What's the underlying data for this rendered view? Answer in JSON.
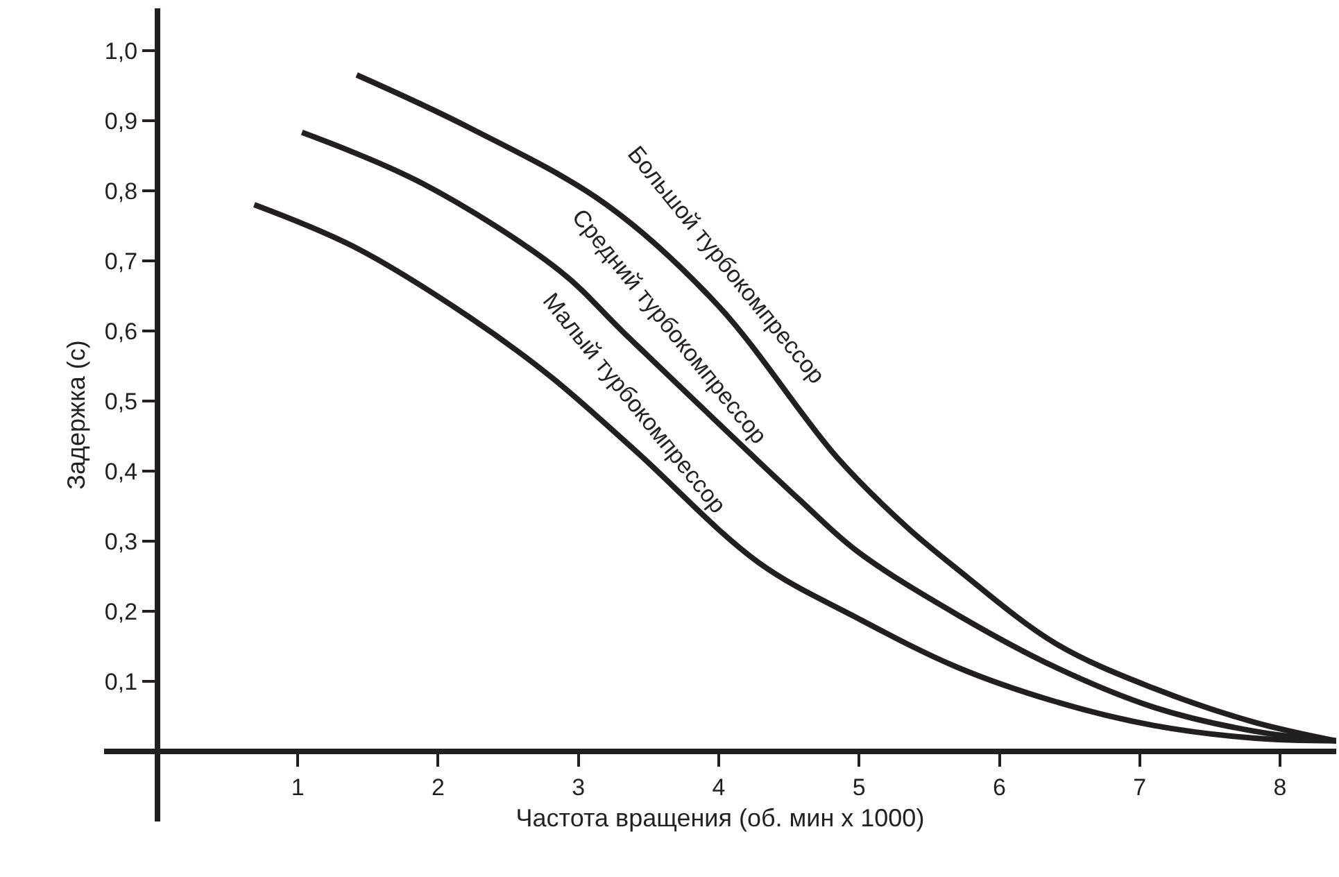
{
  "chart_data": {
    "type": "line",
    "xlabel": "Частота вращения (об. мин x 1000)",
    "ylabel": "Задержка (с)",
    "xlim": [
      -0.38,
      8.4
    ],
    "ylim": [
      -0.1,
      1.06
    ],
    "xticks": [
      1,
      2,
      3,
      4,
      5,
      6,
      7,
      8
    ],
    "yticks": [
      {
        "value": 0.1,
        "label": "0,1"
      },
      {
        "value": 0.2,
        "label": "0,2"
      },
      {
        "value": 0.3,
        "label": "0,3"
      },
      {
        "value": 0.4,
        "label": "0,4"
      },
      {
        "value": 0.5,
        "label": "0,5"
      },
      {
        "value": 0.6,
        "label": "0,6"
      },
      {
        "value": 0.7,
        "label": "0,7"
      },
      {
        "value": 0.8,
        "label": "0,8"
      },
      {
        "value": 0.9,
        "label": "0,9"
      },
      {
        "value": 1.0,
        "label": "1,0"
      }
    ],
    "legend": false,
    "marker": "none",
    "line_style": "solid",
    "series": [
      {
        "name": "Большой турбокомпрессор",
        "color": "#231f20",
        "x": [
          1.42,
          2.22,
          3.2,
          4.0,
          4.84,
          5.34,
          5.7,
          6.4,
          7.1,
          7.81,
          8.4
        ],
        "values": [
          0.965,
          0.89,
          0.78,
          0.635,
          0.42,
          0.32,
          0.26,
          0.154,
          0.09,
          0.042,
          0.015
        ]
      },
      {
        "name": "Средний турбокомпрессор",
        "color": "#231f20",
        "x": [
          1.03,
          1.89,
          2.87,
          3.33,
          4.57,
          4.99,
          5.7,
          6.4,
          7.1,
          7.81,
          8.4
        ],
        "values": [
          0.883,
          0.81,
          0.685,
          0.596,
          0.36,
          0.285,
          0.195,
          0.12,
          0.063,
          0.029,
          0.015
        ]
      },
      {
        "name": "Малый турбокомпрессор",
        "color": "#231f20",
        "x": [
          0.69,
          1.4,
          2.22,
          2.8,
          3.4,
          4.28,
          4.99,
          5.7,
          6.4,
          7.1,
          7.81,
          8.4
        ],
        "values": [
          0.78,
          0.72,
          0.62,
          0.535,
          0.43,
          0.27,
          0.19,
          0.12,
          0.071,
          0.037,
          0.019,
          0.015
        ]
      }
    ]
  }
}
